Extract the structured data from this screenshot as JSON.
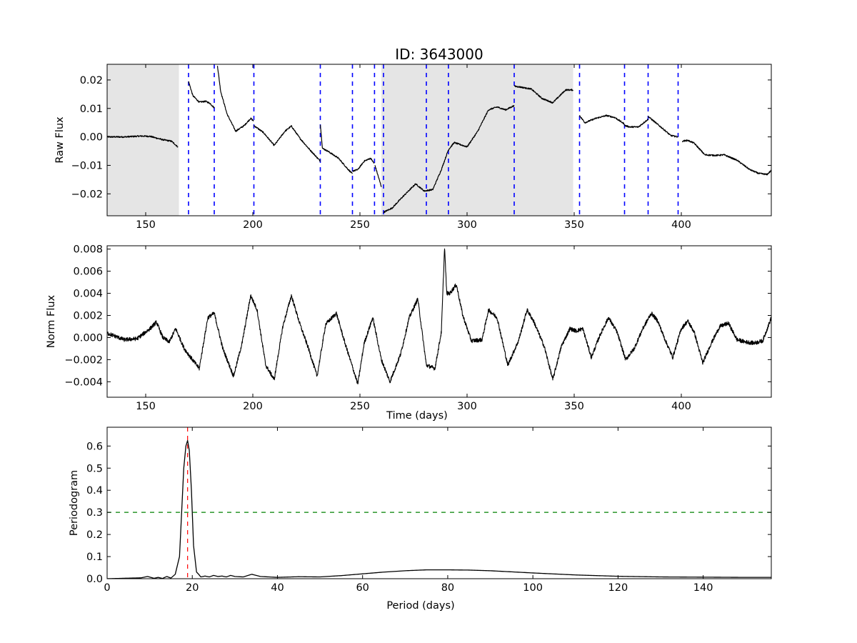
{
  "title": "ID: 3643000",
  "chart_data": [
    {
      "id": "raw",
      "type": "line",
      "title": "ID: 3643000",
      "xlabel": "",
      "ylabel": "Raw Flux",
      "xlim": [
        132,
        442
      ],
      "ylim": [
        -0.0277,
        0.0255
      ],
      "xticks": [
        150,
        200,
        250,
        300,
        350,
        400
      ],
      "xtick_labels": [
        "150",
        "200",
        "250",
        "300",
        "350",
        "400"
      ],
      "yticks": [
        0.02,
        0.01,
        0.0,
        -0.01,
        -0.02
      ],
      "ytick_labels": [
        "0.02",
        "0.01",
        "0.00",
        "−0.01",
        "−0.02"
      ],
      "grid": false,
      "shaded_ranges": [
        [
          132,
          165.5
        ],
        [
          260,
          349.5
        ]
      ],
      "vlines": [
        170,
        182,
        200.5,
        231.5,
        246.5,
        256.8,
        261,
        281,
        291.3,
        322,
        352.5,
        373.5,
        384.5,
        398.5
      ],
      "vline_color": "#0000ff",
      "line_color": "#000000",
      "shade_color": "#e5e5e5",
      "segments": [
        {
          "x": [
            132,
            140,
            148,
            152,
            158,
            162,
            165
          ],
          "y": [
            0.0,
            0.0,
            0.0003,
            0.0002,
            -0.001,
            -0.0015,
            -0.0035
          ]
        },
        {
          "x": [
            170,
            172,
            175,
            178,
            180,
            182
          ],
          "y": [
            0.0195,
            0.0145,
            0.0122,
            0.0125,
            0.0118,
            0.0102
          ]
        },
        {
          "x": [
            183.5,
            185,
            188,
            192,
            196,
            199,
            200.5
          ],
          "y": [
            0.025,
            0.016,
            0.008,
            0.002,
            0.004,
            0.0065,
            0.0055
          ]
        },
        {
          "x": [
            200.5,
            205,
            210,
            215,
            218,
            222,
            226,
            231.5
          ],
          "y": [
            0.004,
            0.0015,
            -0.003,
            0.002,
            0.0038,
            -0.0005,
            -0.004,
            -0.0085
          ]
        },
        {
          "x": [
            231.5,
            232.5,
            235,
            240,
            244,
            246.5
          ],
          "y": [
            0.0045,
            -0.004,
            -0.005,
            -0.0075,
            -0.011,
            -0.013
          ]
        },
        {
          "x": [
            246.5,
            249,
            252,
            255,
            256.8
          ],
          "y": [
            -0.012,
            -0.0115,
            -0.0085,
            -0.0075,
            -0.0095
          ]
        },
        {
          "x": [
            257,
            260
          ],
          "y": [
            -0.01,
            -0.0175
          ]
        },
        {
          "x": [
            261,
            265,
            270,
            276,
            280,
            284,
            288,
            291.3
          ],
          "y": [
            -0.0265,
            -0.025,
            -0.021,
            -0.0165,
            -0.019,
            -0.0185,
            -0.0115,
            -0.0045
          ]
        },
        {
          "x": [
            291.3,
            294,
            300,
            305,
            310,
            314,
            318,
            322
          ],
          "y": [
            -0.0045,
            -0.002,
            -0.0035,
            0.002,
            0.0095,
            0.0105,
            0.0095,
            0.011
          ]
        },
        {
          "x": [
            322.2,
            325,
            330,
            335,
            340,
            346,
            349.5
          ],
          "y": [
            0.0178,
            0.0175,
            0.0168,
            0.0135,
            0.012,
            0.0165,
            0.0165
          ]
        },
        {
          "x": [
            352.5,
            355,
            360,
            365,
            369,
            373.5
          ],
          "y": [
            0.0075,
            0.005,
            0.0065,
            0.0075,
            0.0068,
            0.0045
          ]
        },
        {
          "x": [
            373.5,
            376,
            380,
            384.5
          ],
          "y": [
            0.004,
            0.0035,
            0.0035,
            0.0062
          ]
        },
        {
          "x": [
            384.5,
            388,
            392,
            395,
            398.5
          ],
          "y": [
            0.0072,
            0.005,
            0.0025,
            0.0005,
            0.0
          ]
        },
        {
          "x": [
            400.5,
            403,
            406,
            411,
            416,
            420,
            426,
            432,
            436,
            440,
            442
          ],
          "y": [
            -0.0015,
            -0.0012,
            -0.0022,
            -0.0063,
            -0.0065,
            -0.0063,
            -0.0082,
            -0.0115,
            -0.0128,
            -0.0132,
            -0.0118
          ]
        }
      ]
    },
    {
      "id": "norm",
      "type": "line",
      "title": "",
      "xlabel": "Time (days)",
      "ylabel": "Norm Flux",
      "xlim": [
        132,
        442
      ],
      "ylim": [
        -0.0054,
        0.0083
      ],
      "xticks": [
        150,
        200,
        250,
        300,
        350,
        400
      ],
      "xtick_labels": [
        "150",
        "200",
        "250",
        "300",
        "350",
        "400"
      ],
      "yticks": [
        0.008,
        0.006,
        0.004,
        0.002,
        0.0,
        -0.002,
        -0.004
      ],
      "ytick_labels": [
        "0.008",
        "0.006",
        "0.004",
        "0.002",
        "0.000",
        "−0.002",
        "−0.004"
      ],
      "grid": false,
      "line_color": "#000000",
      "x": [
        132,
        140,
        146,
        152,
        155,
        158,
        161,
        164,
        168,
        171,
        175,
        179,
        182,
        186,
        191,
        195,
        199,
        202,
        206,
        210,
        214,
        218,
        222,
        226,
        230,
        234,
        239,
        243,
        249,
        252,
        256,
        260,
        264,
        269,
        273,
        277,
        281,
        285,
        288,
        289.5,
        290.5,
        292,
        295,
        298,
        302,
        307,
        310,
        314,
        319,
        324,
        328,
        331,
        336,
        340,
        344,
        348,
        351,
        354,
        358,
        362,
        366,
        370,
        374,
        378,
        382,
        386,
        389,
        392,
        396,
        400,
        403,
        406,
        410,
        414,
        418,
        422,
        426,
        430,
        434,
        438,
        442
      ],
      "y": [
        0.0004,
        -0.0002,
        -0.0001,
        0.0008,
        0.0014,
        0.0,
        -0.0004,
        0.0008,
        -0.001,
        -0.0018,
        -0.0028,
        0.0018,
        0.0022,
        -0.001,
        -0.0035,
        -0.0005,
        0.0038,
        0.0025,
        -0.0025,
        -0.0038,
        0.001,
        0.0038,
        0.0012,
        -0.001,
        -0.0035,
        0.0012,
        0.0022,
        -0.0005,
        -0.0042,
        -0.0005,
        0.0018,
        -0.002,
        -0.004,
        -0.0015,
        0.0018,
        0.0035,
        -0.0025,
        -0.0028,
        0.0005,
        0.0082,
        0.004,
        0.004,
        0.0048,
        0.002,
        -0.0003,
        -0.0002,
        0.0025,
        0.0018,
        -0.0025,
        -0.0003,
        0.0025,
        0.0015,
        -0.0008,
        -0.0038,
        -0.0008,
        0.0008,
        0.0006,
        0.0008,
        -0.0018,
        0.0002,
        0.0018,
        0.0005,
        -0.002,
        -0.001,
        0.0008,
        0.0022,
        0.0015,
        0.0,
        -0.0018,
        0.0008,
        0.0015,
        0.0005,
        -0.0023,
        -0.0005,
        0.001,
        0.0013,
        -0.0002,
        -0.0004,
        -0.0005,
        -0.0003,
        0.0018
      ]
    },
    {
      "id": "periodogram",
      "type": "line",
      "title": "",
      "xlabel": "Period (days)",
      "ylabel": "Periodogram",
      "xlim": [
        0,
        156
      ],
      "ylim": [
        0,
        0.685
      ],
      "xticks": [
        0,
        20,
        40,
        60,
        80,
        100,
        120,
        140
      ],
      "xtick_labels": [
        "0",
        "20",
        "40",
        "60",
        "80",
        "100",
        "120",
        "140"
      ],
      "yticks": [
        0.0,
        0.1,
        0.2,
        0.3,
        0.4,
        0.5,
        0.6
      ],
      "ytick_labels": [
        "0.0",
        "0.1",
        "0.2",
        "0.3",
        "0.4",
        "0.5",
        "0.6"
      ],
      "grid": false,
      "line_color": "#000000",
      "peak_period": 18.9,
      "peak_line_color": "#ff0000",
      "threshold": 0.3,
      "threshold_color": "#008000",
      "x": [
        0,
        4,
        8,
        9.5,
        11,
        12,
        13,
        14,
        15,
        16,
        17,
        17.5,
        18,
        18.5,
        18.9,
        19.3,
        19.8,
        20.3,
        21,
        21.5,
        22,
        23,
        24,
        25,
        26,
        27,
        28,
        29,
        30,
        32,
        34,
        36,
        40,
        45,
        50,
        55,
        60,
        65,
        70,
        75,
        80,
        85,
        90,
        95,
        100,
        110,
        120,
        130,
        140,
        150,
        156
      ],
      "y": [
        0.0,
        0.002,
        0.004,
        0.01,
        0.002,
        0.006,
        0.001,
        0.01,
        0.003,
        0.02,
        0.1,
        0.3,
        0.5,
        0.6,
        0.625,
        0.58,
        0.4,
        0.15,
        0.03,
        0.02,
        0.008,
        0.012,
        0.008,
        0.015,
        0.01,
        0.012,
        0.008,
        0.015,
        0.01,
        0.008,
        0.02,
        0.01,
        0.006,
        0.009,
        0.008,
        0.014,
        0.022,
        0.03,
        0.036,
        0.04,
        0.04,
        0.039,
        0.036,
        0.031,
        0.026,
        0.017,
        0.011,
        0.008,
        0.007,
        0.006,
        0.006
      ]
    }
  ]
}
